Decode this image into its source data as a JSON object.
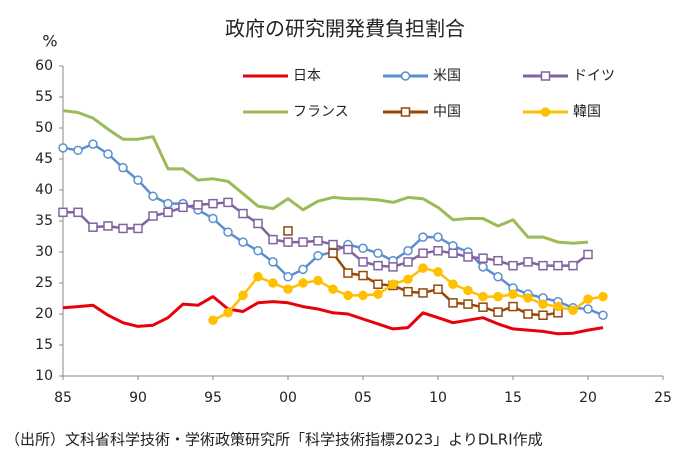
{
  "chart_data": {
    "type": "line",
    "title": "政府の研究開発費負担割合",
    "y_label": "%",
    "source": "（出所）文科省科学技術・学術政策研究所「科学技術指標2023」よりDLRI作成",
    "x": [
      1985,
      1986,
      1987,
      1988,
      1989,
      1990,
      1991,
      1992,
      1993,
      1994,
      1995,
      1996,
      1997,
      1998,
      1999,
      2000,
      2001,
      2002,
      2003,
      2004,
      2005,
      2006,
      2007,
      2008,
      2009,
      2010,
      2011,
      2012,
      2013,
      2014,
      2015,
      2016,
      2017,
      2018,
      2019,
      2020,
      2021
    ],
    "xlim": [
      1985,
      2025
    ],
    "xticks": [
      {
        "value": 1985,
        "label": "85"
      },
      {
        "value": 1990,
        "label": "90"
      },
      {
        "value": 1995,
        "label": "95"
      },
      {
        "value": 2000,
        "label": "00"
      },
      {
        "value": 2005,
        "label": "05"
      },
      {
        "value": 2010,
        "label": "10"
      },
      {
        "value": 2015,
        "label": "15"
      },
      {
        "value": 2020,
        "label": "20"
      },
      {
        "value": 2025,
        "label": "25"
      }
    ],
    "ylim": [
      10,
      60
    ],
    "yticks": [
      10,
      15,
      20,
      25,
      30,
      35,
      40,
      45,
      50,
      55,
      60
    ],
    "grid": false,
    "series": [
      {
        "name": "日本",
        "color": "#e8000b",
        "marker": "none",
        "values": [
          21.0,
          21.2,
          21.4,
          19.8,
          18.6,
          18.0,
          18.2,
          19.4,
          21.6,
          21.4,
          22.8,
          20.8,
          20.4,
          21.8,
          22.0,
          21.8,
          21.2,
          20.8,
          20.2,
          20.0,
          19.2,
          18.4,
          17.6,
          17.8,
          20.2,
          19.4,
          18.6,
          19.0,
          19.4,
          18.4,
          17.6,
          17.4,
          17.2,
          16.8,
          16.9,
          17.4,
          17.8
        ]
      },
      {
        "name": "米国",
        "color": "#5b8fd0",
        "marker": "circle",
        "values": [
          46.8,
          46.4,
          47.4,
          45.8,
          43.6,
          41.6,
          39.0,
          37.8,
          37.8,
          36.8,
          35.4,
          33.2,
          31.6,
          30.2,
          28.4,
          26.0,
          27.2,
          29.4,
          30.0,
          31.2,
          30.6,
          29.8,
          28.6,
          30.2,
          32.4,
          32.4,
          31.0,
          30.0,
          27.6,
          26.0,
          24.2,
          23.2,
          22.6,
          22.0,
          21.0,
          20.8,
          19.8
        ]
      },
      {
        "name": "ドイツ",
        "color": "#8064a2",
        "marker": "square",
        "values": [
          36.4,
          36.4,
          34.0,
          34.2,
          33.8,
          33.8,
          35.8,
          36.4,
          37.2,
          37.6,
          37.8,
          38.0,
          36.2,
          34.6,
          32.0,
          31.6,
          31.6,
          31.8,
          31.2,
          30.4,
          28.4,
          27.8,
          27.6,
          28.4,
          29.8,
          30.2,
          29.8,
          29.2,
          29.0,
          28.6,
          27.8,
          28.4,
          27.8,
          27.8,
          27.8,
          29.6,
          null
        ]
      },
      {
        "name": "フランス",
        "color": "#9bbb59",
        "marker": "none",
        "values": [
          52.8,
          52.5,
          51.6,
          49.8,
          48.2,
          48.2,
          48.6,
          43.4,
          43.4,
          41.6,
          41.8,
          41.4,
          39.4,
          37.4,
          37.0,
          38.6,
          36.8,
          38.2,
          38.8,
          38.6,
          38.6,
          38.4,
          38.0,
          38.8,
          38.6,
          37.2,
          35.2,
          35.4,
          35.4,
          34.2,
          35.2,
          32.4,
          32.4,
          31.6,
          31.4,
          31.6,
          null
        ]
      },
      {
        "name": "中国",
        "color": "#974706",
        "marker": "square",
        "values": [
          null,
          null,
          null,
          null,
          null,
          null,
          null,
          null,
          null,
          null,
          null,
          null,
          null,
          null,
          null,
          33.4,
          null,
          null,
          29.8,
          26.6,
          26.2,
          24.8,
          24.6,
          23.6,
          23.4,
          24.0,
          21.8,
          21.6,
          21.1,
          20.3,
          21.2,
          20.0,
          19.8,
          20.2,
          null,
          null,
          null
        ]
      },
      {
        "name": "韓国",
        "color": "#ffc000",
        "marker": "filled-circle",
        "values": [
          null,
          null,
          null,
          null,
          null,
          null,
          null,
          null,
          null,
          null,
          19.0,
          20.2,
          23.0,
          26.0,
          25.0,
          24.0,
          25.0,
          25.4,
          24.0,
          23.0,
          23.0,
          23.2,
          24.8,
          25.6,
          27.4,
          26.8,
          24.8,
          23.8,
          22.8,
          22.8,
          23.2,
          22.6,
          21.6,
          21.2,
          20.6,
          22.4,
          22.8
        ]
      }
    ]
  }
}
